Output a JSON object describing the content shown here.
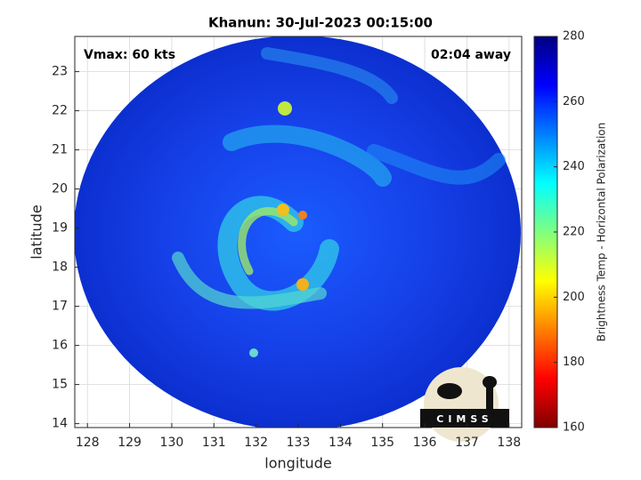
{
  "chart_data": {
    "type": "map",
    "title": "Khanun: 30-Jul-2023 00:15:00",
    "annotations": [
      "Vmax: 60 kts",
      "02:04 away"
    ],
    "xlabel": "longitude",
    "ylabel": "latitude",
    "xlim": [
      127.7,
      138.3
    ],
    "ylim": [
      13.9,
      23.9
    ],
    "xticks": [
      128,
      129,
      130,
      131,
      132,
      133,
      134,
      135,
      136,
      137,
      138
    ],
    "yticks": [
      14,
      15,
      16,
      17,
      18,
      19,
      20,
      21,
      22,
      23
    ],
    "grid": true,
    "colorbar": {
      "label": "Brightness Temp - Horizontal Polarization",
      "colormap": "jet",
      "lim": [
        160,
        280
      ],
      "ticks": [
        160,
        180,
        200,
        220,
        240,
        260,
        280
      ]
    },
    "logo": "CIMSS"
  }
}
